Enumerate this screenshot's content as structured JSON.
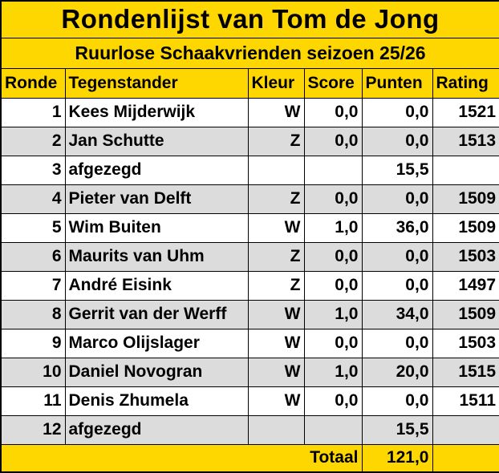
{
  "title": "Rondenlijst van Tom de Jong",
  "subtitle": "Ruurlose Schaakvrienden seizoen 25/26",
  "columns": [
    "Ronde",
    "Tegenstander",
    "Kleur",
    "Score",
    "Punten",
    "Rating"
  ],
  "rows": [
    {
      "ronde": "1",
      "tegenstander": "Kees Mijderwijk",
      "kleur": "W",
      "score": "0,0",
      "punten": "0,0",
      "rating": "1521"
    },
    {
      "ronde": "2",
      "tegenstander": "Jan Schutte",
      "kleur": "Z",
      "score": "0,0",
      "punten": "0,0",
      "rating": "1513"
    },
    {
      "ronde": "3",
      "tegenstander": "afgezegd",
      "kleur": "",
      "score": "",
      "punten": "15,5",
      "rating": ""
    },
    {
      "ronde": "4",
      "tegenstander": "Pieter van Delft",
      "kleur": "Z",
      "score": "0,0",
      "punten": "0,0",
      "rating": "1509"
    },
    {
      "ronde": "5",
      "tegenstander": "Wim Buiten",
      "kleur": "W",
      "score": "1,0",
      "punten": "36,0",
      "rating": "1509"
    },
    {
      "ronde": "6",
      "tegenstander": "Maurits van Uhm",
      "kleur": "Z",
      "score": "0,0",
      "punten": "0,0",
      "rating": "1503"
    },
    {
      "ronde": "7",
      "tegenstander": "André Eisink",
      "kleur": "Z",
      "score": "0,0",
      "punten": "0,0",
      "rating": "1497"
    },
    {
      "ronde": "8",
      "tegenstander": "Gerrit van der Werff",
      "kleur": "W",
      "score": "1,0",
      "punten": "34,0",
      "rating": "1509"
    },
    {
      "ronde": "9",
      "tegenstander": "Marco Olijslager",
      "kleur": "W",
      "score": "0,0",
      "punten": "0,0",
      "rating": "1503"
    },
    {
      "ronde": "10",
      "tegenstander": "Daniel Novogran",
      "kleur": "W",
      "score": "1,0",
      "punten": "20,0",
      "rating": "1515"
    },
    {
      "ronde": "11",
      "tegenstander": "Denis Zhumela",
      "kleur": "W",
      "score": "0,0",
      "punten": "0,0",
      "rating": "1511"
    },
    {
      "ronde": "12",
      "tegenstander": "afgezegd",
      "kleur": "",
      "score": "",
      "punten": "15,5",
      "rating": ""
    }
  ],
  "footer": {
    "label": "Totaal",
    "punten": "121,0",
    "rating": ""
  },
  "colors": {
    "accent_yellow": "#FFD700",
    "row_white": "#FFFFFF",
    "row_alt_gray": "#DCDCDC",
    "border": "#000000",
    "text": "#000000"
  }
}
